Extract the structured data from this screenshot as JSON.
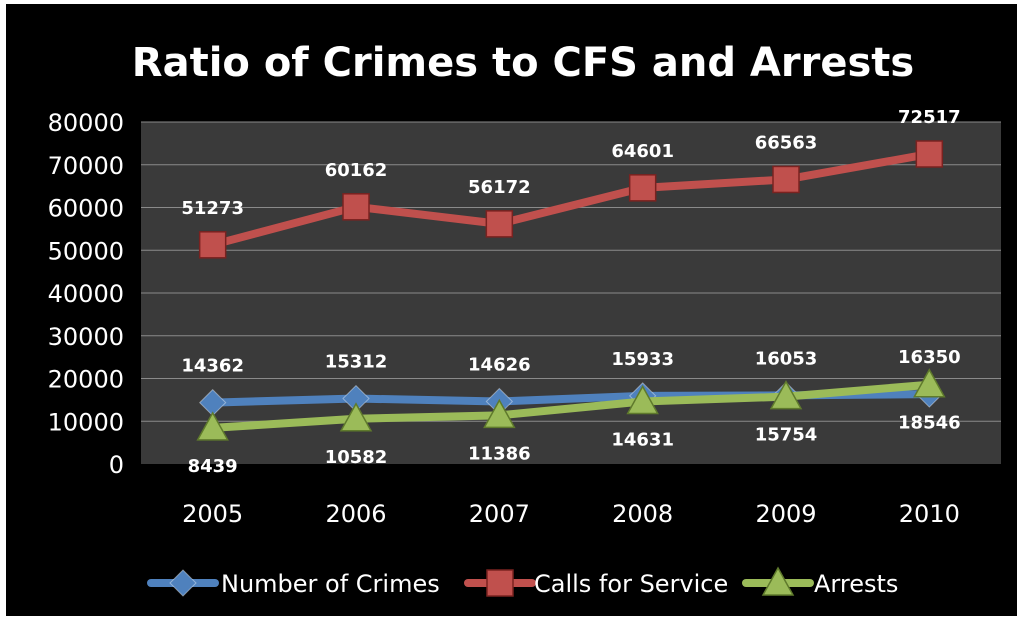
{
  "chart_data": {
    "type": "line",
    "title": "Ratio of Crimes to CFS and Arrests",
    "xlabel": "",
    "ylabel": "",
    "categories": [
      "2005",
      "2006",
      "2007",
      "2008",
      "2009",
      "2010"
    ],
    "ylim": [
      0,
      80000
    ],
    "yticks": [
      0,
      10000,
      20000,
      30000,
      40000,
      50000,
      60000,
      70000,
      80000
    ],
    "grid": true,
    "legend_position": "bottom",
    "series": [
      {
        "name": "Number of Crimes",
        "color": "#4f81bd",
        "marker": "diamond",
        "values": [
          14362,
          15312,
          14626,
          15933,
          16053,
          16350
        ],
        "labels": [
          "14362",
          "15312",
          "14626",
          "15933",
          "16053",
          "16350"
        ],
        "label_side": "above"
      },
      {
        "name": "Calls for Service",
        "color": "#c0504d",
        "marker": "square",
        "values": [
          51273,
          60162,
          56172,
          64601,
          66563,
          72517
        ],
        "labels": [
          "51273",
          "60162",
          "56172",
          "64601",
          "66563",
          "72517"
        ],
        "label_side": "above"
      },
      {
        "name": "Arrests",
        "color": "#9bbb59",
        "marker": "triangle",
        "values": [
          8439,
          10582,
          11386,
          14631,
          15754,
          18546
        ],
        "labels": [
          "8439",
          "10582",
          "11386",
          "14631",
          "15754",
          "18546"
        ],
        "label_side": "below"
      }
    ]
  }
}
